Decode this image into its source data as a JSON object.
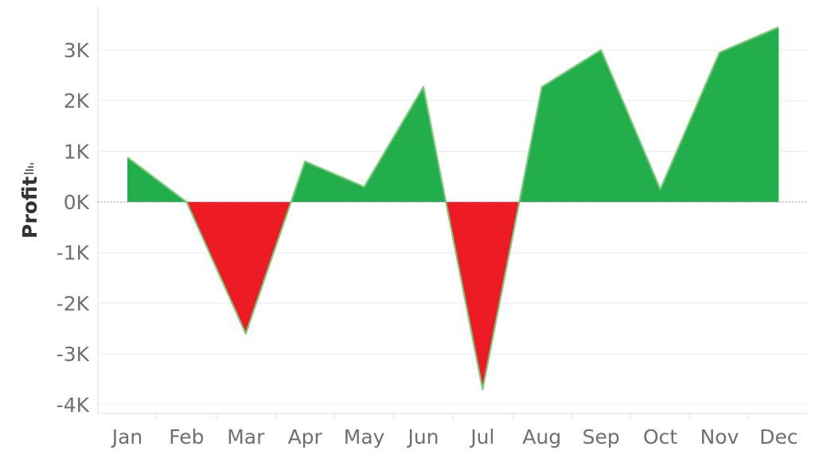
{
  "chart_data": {
    "type": "area",
    "categories": [
      "Jan",
      "Feb",
      "Mar",
      "Apr",
      "May",
      "Jun",
      "Jul",
      "Aug",
      "Sep",
      "Oct",
      "Nov",
      "Dec"
    ],
    "values": [
      880,
      0,
      -2600,
      800,
      300,
      2270,
      -3700,
      2270,
      3000,
      250,
      2950,
      3450
    ],
    "ylabel": "Profit",
    "ylim": [
      -4200,
      3700
    ],
    "yticks": [
      3000,
      2000,
      1000,
      0,
      -1000,
      -2000,
      -3000,
      -4000
    ],
    "ytick_labels": [
      "3K",
      "2K",
      "1K",
      "0K",
      "-1K",
      "-2K",
      "-3K",
      "-4K"
    ],
    "grid": true,
    "colors": {
      "positive": "#22ae4a",
      "negative": "#ed1c24",
      "outline": "#7cc97a",
      "zero_line": "#999999",
      "grid": "#ececec",
      "axis": "#dddddd"
    }
  },
  "icons": {
    "sort_icon": "sort-descending-icon"
  }
}
